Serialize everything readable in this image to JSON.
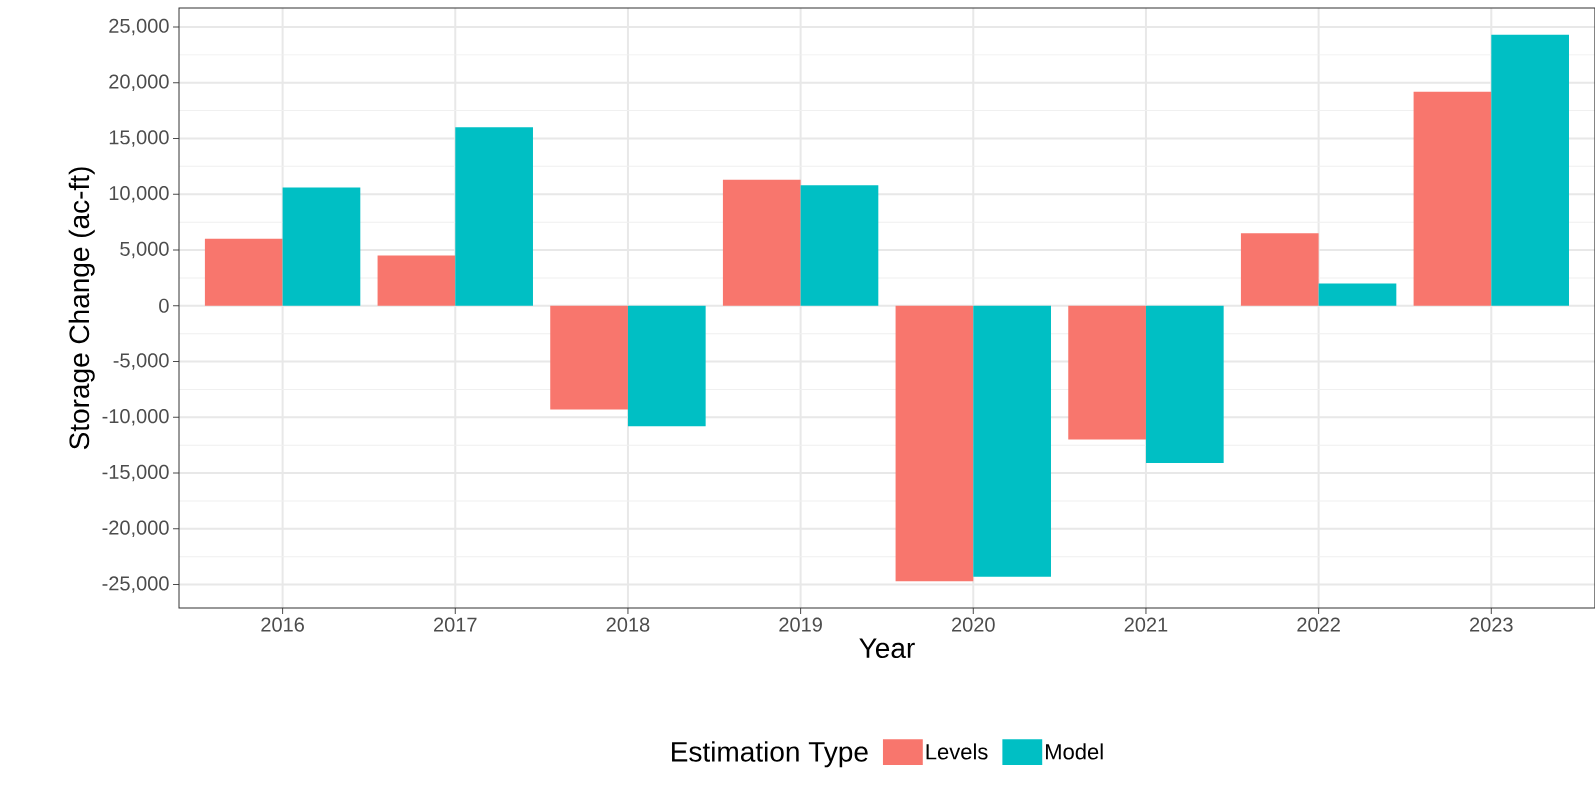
{
  "chart_data": {
    "type": "bar",
    "xlabel": "Year",
    "ylabel": "Storage Change (ac-ft)",
    "legend_title": "Estimation Type",
    "categories": [
      "2016",
      "2017",
      "2018",
      "2019",
      "2020",
      "2021",
      "2022",
      "2023"
    ],
    "series": [
      {
        "name": "Levels",
        "color": "#f8766d",
        "values": [
          6000,
          4500,
          -9300,
          11300,
          -24700,
          -12000,
          6500,
          19200
        ]
      },
      {
        "name": "Model",
        "color": "#00bfc4",
        "values": [
          10600,
          16000,
          -10800,
          10800,
          -24300,
          -14100,
          2000,
          24300
        ]
      }
    ],
    "ylim": [
      -27100,
      26700
    ],
    "yticks": [
      {
        "value": -25000,
        "label": "-25,000"
      },
      {
        "value": -20000,
        "label": "-20,000"
      },
      {
        "value": -15000,
        "label": "-15,000"
      },
      {
        "value": -10000,
        "label": "-10,000"
      },
      {
        "value": -5000,
        "label": "-5,000"
      },
      0,
      {
        "value": 5000,
        "label": "5,000"
      },
      {
        "value": 10000,
        "label": "10,000"
      },
      {
        "value": 15000,
        "label": "15,000"
      },
      {
        "value": 20000,
        "label": "20,000"
      },
      {
        "value": 25000,
        "label": "25,000"
      }
    ],
    "grid": true,
    "legend": "bottom"
  }
}
